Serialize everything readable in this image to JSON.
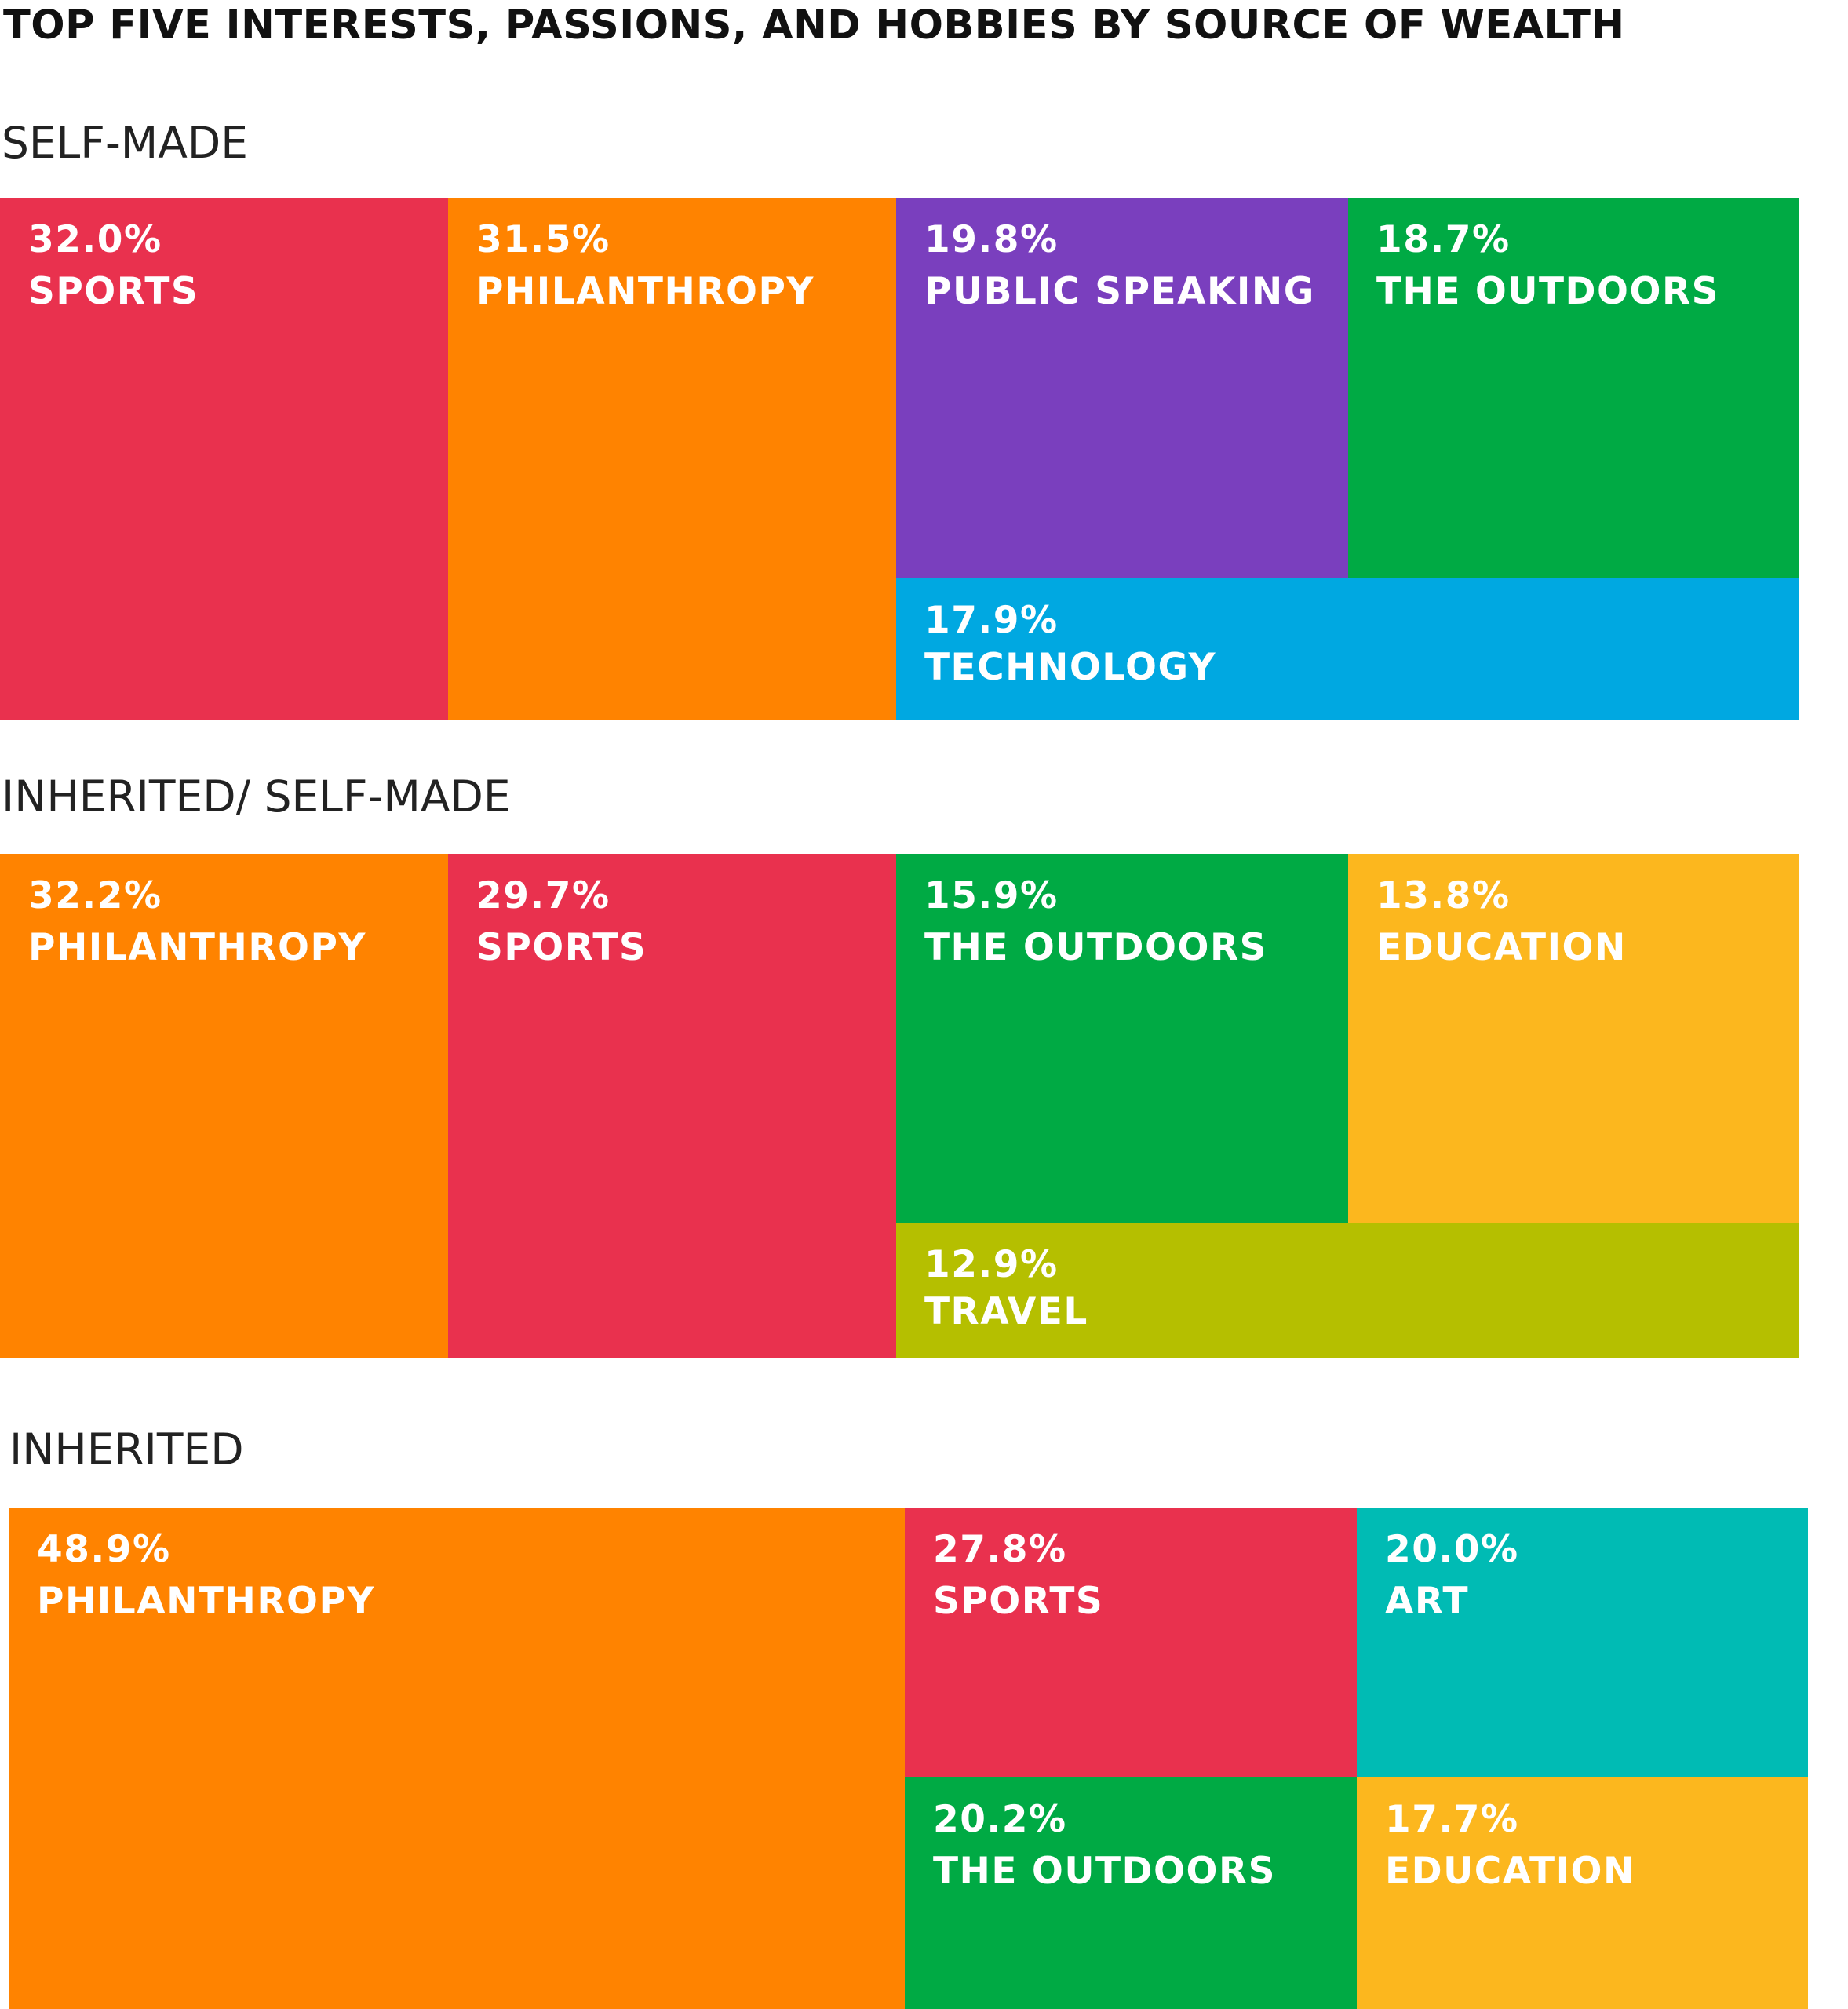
{
  "chart_data": {
    "type": "treemap",
    "title": "TOP FIVE INTERESTS, PASSIONS, AND HOBBIES BY SOURCE OF WEALTH",
    "groups": [
      {
        "name": "SELF-MADE",
        "items": [
          {
            "label": "SPORTS",
            "value": 32.0,
            "display": "32.0%",
            "color": "#E9314E"
          },
          {
            "label": "PHILANTHROPY",
            "value": 31.5,
            "display": "31.5%",
            "color": "#FF8300"
          },
          {
            "label": "PUBLIC SPEAKING",
            "value": 19.8,
            "display": "19.8%",
            "color": "#7A3FBE"
          },
          {
            "label": "THE OUTDOORS",
            "value": 18.7,
            "display": "18.7%",
            "color": "#00AA44"
          },
          {
            "label": "TECHNOLOGY",
            "value": 17.9,
            "display": "17.9%",
            "color": "#00A8E1"
          }
        ]
      },
      {
        "name": "INHERITED/ SELF-MADE",
        "items": [
          {
            "label": "PHILANTHROPY",
            "value": 32.2,
            "display": "32.2%",
            "color": "#FF8300"
          },
          {
            "label": "SPORTS",
            "value": 29.7,
            "display": "29.7%",
            "color": "#E9314E"
          },
          {
            "label": "THE OUTDOORS",
            "value": 15.9,
            "display": "15.9%",
            "color": "#00AA44"
          },
          {
            "label": "EDUCATION",
            "value": 13.8,
            "display": "13.8%",
            "color": "#FCB71E"
          },
          {
            "label": "TRAVEL",
            "value": 12.9,
            "display": "12.9%",
            "color": "#B5BF00"
          }
        ]
      },
      {
        "name": "INHERITED",
        "items": [
          {
            "label": "PHILANTHROPY",
            "value": 48.9,
            "display": "48.9%",
            "color": "#FF8300"
          },
          {
            "label": "SPORTS",
            "value": 27.8,
            "display": "27.8%",
            "color": "#E9314E"
          },
          {
            "label": "ART",
            "value": 20.0,
            "display": "20.0%",
            "color": "#00BBB4"
          },
          {
            "label": "THE OUTDOORS",
            "value": 20.2,
            "display": "20.2%",
            "color": "#00AA44"
          },
          {
            "label": "EDUCATION",
            "value": 17.7,
            "display": "17.7%",
            "color": "#FCB71E"
          }
        ]
      }
    ]
  }
}
